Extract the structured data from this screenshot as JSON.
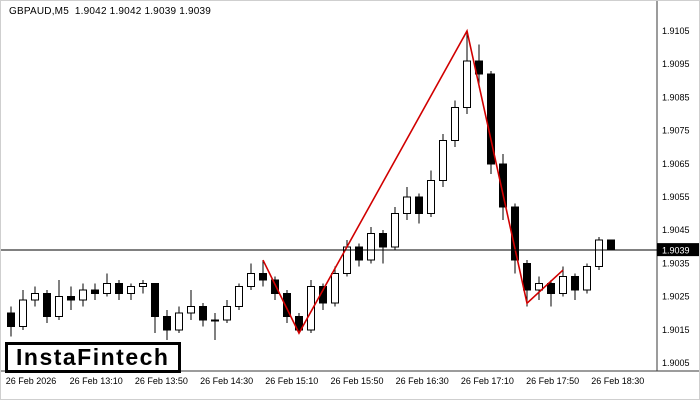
{
  "header": {
    "symbol_line": "GBPAUD,M5  1.9042 1.9042 1.9039 1.9039"
  },
  "logo": {
    "text": "InstaFintech"
  },
  "chart_data": {
    "type": "candlestick",
    "title": "GBPAUD,M5",
    "symbol": "GBPAUD",
    "timeframe": "M5",
    "quote": {
      "open": 1.9042,
      "high": 1.9042,
      "low": 1.9039,
      "close": 1.9039
    },
    "current_price": 1.9039,
    "current_price_label": "1.9039",
    "ylim": [
      1.9,
      1.911
    ],
    "grid": false,
    "legend": "none",
    "price_ticks": [
      "1.9105",
      "1.9095",
      "1.9085",
      "1.9075",
      "1.9065",
      "1.9055",
      "1.9045",
      "1.9035",
      "1.9025",
      "1.9015",
      "1.9005"
    ],
    "time_labels": [
      "26 Feb 2026",
      "26 Feb 13:10",
      "26 Feb 13:50",
      "26 Feb 14:30",
      "26 Feb 15:10",
      "26 Feb 15:50",
      "26 Feb 16:30",
      "26 Feb 17:10",
      "26 Feb 17:50",
      "26 Feb 18:30"
    ],
    "candles": [
      [
        1.902,
        1.9022,
        1.9013,
        1.9016
      ],
      [
        1.9016,
        1.9027,
        1.9015,
        1.9024
      ],
      [
        1.9024,
        1.9028,
        1.9022,
        1.9026
      ],
      [
        1.9026,
        1.9027,
        1.9017,
        1.9019
      ],
      [
        1.9019,
        1.903,
        1.9018,
        1.9025
      ],
      [
        1.9025,
        1.9028,
        1.9021,
        1.9024
      ],
      [
        1.9024,
        1.9029,
        1.9022,
        1.9027
      ],
      [
        1.9027,
        1.9029,
        1.9024,
        1.9026
      ],
      [
        1.9026,
        1.9032,
        1.9025,
        1.9029
      ],
      [
        1.9029,
        1.903,
        1.9024,
        1.9026
      ],
      [
        1.9026,
        1.9029,
        1.9024,
        1.9028
      ],
      [
        1.9028,
        1.903,
        1.9026,
        1.9029
      ],
      [
        1.9029,
        1.9029,
        1.9014,
        1.9019
      ],
      [
        1.9019,
        1.9021,
        1.9012,
        1.9015
      ],
      [
        1.9015,
        1.9022,
        1.9014,
        1.902
      ],
      [
        1.902,
        1.9027,
        1.9018,
        1.9022
      ],
      [
        1.9022,
        1.9023,
        1.9016,
        1.9018
      ],
      [
        1.9018,
        1.902,
        1.9012,
        1.9018
      ],
      [
        1.9018,
        1.9024,
        1.9017,
        1.9022
      ],
      [
        1.9022,
        1.9029,
        1.9021,
        1.9028
      ],
      [
        1.9028,
        1.9035,
        1.9027,
        1.9032
      ],
      [
        1.9032,
        1.9036,
        1.9028,
        1.903
      ],
      [
        1.903,
        1.9031,
        1.9024,
        1.9026
      ],
      [
        1.9026,
        1.9027,
        1.9017,
        1.9019
      ],
      [
        1.9019,
        1.902,
        1.9014,
        1.9015
      ],
      [
        1.9015,
        1.903,
        1.9014,
        1.9028
      ],
      [
        1.9028,
        1.9029,
        1.9021,
        1.9023
      ],
      [
        1.9023,
        1.9034,
        1.9022,
        1.9032
      ],
      [
        1.9032,
        1.9042,
        1.9031,
        1.904
      ],
      [
        1.904,
        1.9041,
        1.9034,
        1.9036
      ],
      [
        1.9036,
        1.9046,
        1.9035,
        1.9044
      ],
      [
        1.9044,
        1.9045,
        1.9035,
        1.904
      ],
      [
        1.904,
        1.9052,
        1.9039,
        1.905
      ],
      [
        1.905,
        1.9058,
        1.9048,
        1.9055
      ],
      [
        1.9055,
        1.9056,
        1.9047,
        1.905
      ],
      [
        1.905,
        1.9063,
        1.9049,
        1.906
      ],
      [
        1.906,
        1.9074,
        1.9058,
        1.9072
      ],
      [
        1.9072,
        1.9084,
        1.907,
        1.9082
      ],
      [
        1.9082,
        1.9105,
        1.908,
        1.9096
      ],
      [
        1.9096,
        1.9101,
        1.9088,
        1.9092
      ],
      [
        1.9092,
        1.9093,
        1.9062,
        1.9065
      ],
      [
        1.9065,
        1.9068,
        1.9048,
        1.9052
      ],
      [
        1.9052,
        1.9053,
        1.9032,
        1.9036
      ],
      [
        1.9035,
        1.9036,
        1.9022,
        1.9027
      ],
      [
        1.9027,
        1.9031,
        1.9024,
        1.9029
      ],
      [
        1.9029,
        1.903,
        1.9022,
        1.9026
      ],
      [
        1.9026,
        1.9034,
        1.9025,
        1.9031
      ],
      [
        1.9031,
        1.9032,
        1.9024,
        1.9027
      ],
      [
        1.9027,
        1.9035,
        1.9026,
        1.9034
      ],
      [
        1.9034,
        1.9043,
        1.9033,
        1.9042
      ],
      [
        1.9042,
        1.9042,
        1.9039,
        1.9039
      ]
    ],
    "zigzag": [
      [
        21,
        1.9036
      ],
      [
        24,
        1.9014
      ],
      [
        38,
        1.9105
      ],
      [
        43,
        1.9023
      ],
      [
        46,
        1.9033
      ]
    ],
    "colors": {
      "bull": "#ffffff",
      "bear": "#000000",
      "outline": "#000000",
      "zigzag": "#d10000",
      "price_line": "#000000",
      "tag_bg": "#000000",
      "tag_fg": "#ffffff",
      "axis": "#3a3a3a",
      "text": "#000000",
      "background": "#ffffff"
    }
  }
}
